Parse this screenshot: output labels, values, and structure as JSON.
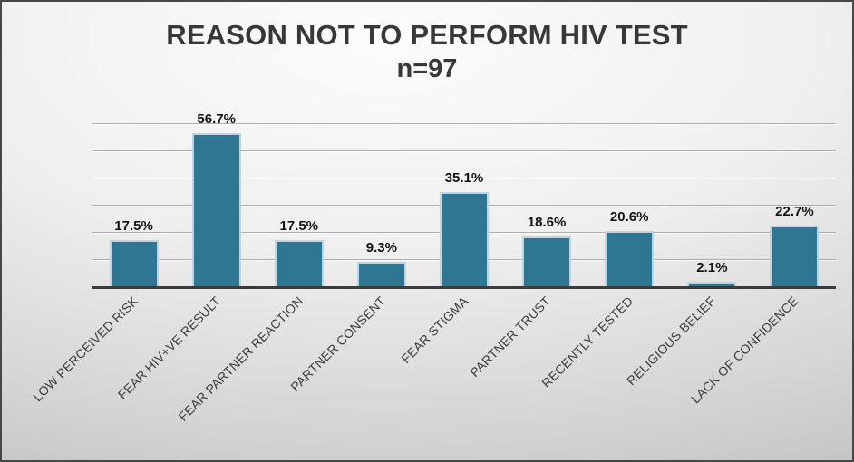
{
  "chart_data": {
    "type": "bar",
    "title": "REASON NOT TO PERFORM HIV TEST",
    "subtitle": "n=97",
    "categories": [
      "LOW PERCEIVED RISK",
      "FEAR HIV+VE RESULT",
      "FEAR PARTNER REACTION",
      "PARTNER CONSENT",
      "FEAR STIGMA",
      "PARTNER TRUST",
      "RECENTLY TESTED",
      "RELIGIOUS BELIEF",
      "LACK OF CONFIDENCE"
    ],
    "values": [
      17.5,
      56.7,
      17.5,
      9.3,
      35.1,
      18.6,
      20.6,
      2.1,
      22.7
    ],
    "value_labels": [
      "17.5%",
      "56.7%",
      "17.5%",
      "9.3%",
      "35.1%",
      "18.6%",
      "20.6%",
      "2.1%",
      "22.7%"
    ],
    "unit": "%",
    "xlabel": "",
    "ylabel": "",
    "ylim": [
      0,
      60
    ],
    "grid": true,
    "gridline_interval": 10,
    "legend": false,
    "bar_color": "#2F7692",
    "bar_border_color": "#BAD6E4",
    "axis_line_color": "#3B3B3B",
    "gridline_color": "#ACACAC",
    "value_label_color": "#121212",
    "tick_label_color": "#3D3D3D",
    "title_color": "#383838"
  }
}
